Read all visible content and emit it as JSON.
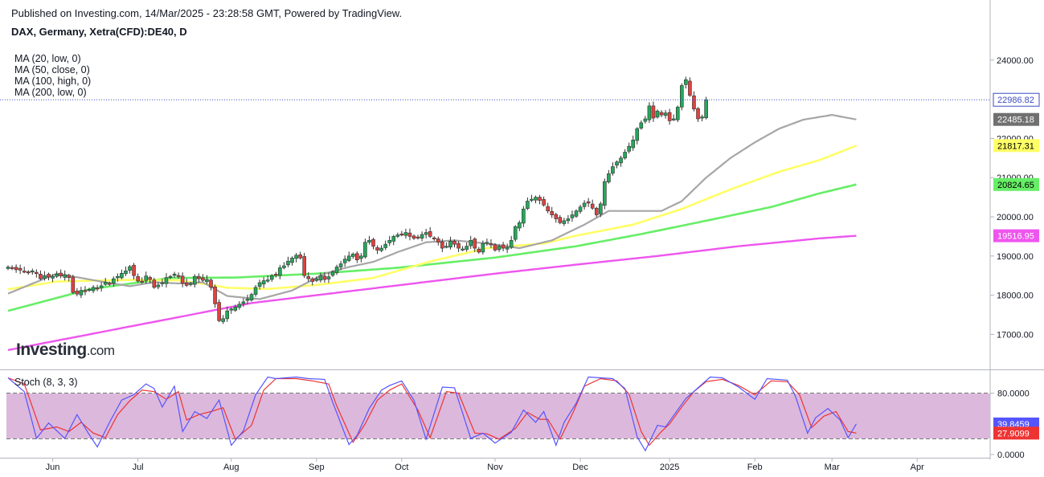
{
  "header": {
    "published": "Published on Investing.com, 14/Mar/2025 - 23:28:58 GMT, Powered by TradingView.",
    "symbol": "DAX, Germany, Xetra(CFD):DE40, D"
  },
  "legend": {
    "ma20": "MA (20, low, 0)",
    "ma50": "MA (50, close, 0)",
    "ma100": "MA (100, high, 0)",
    "ma200": "MA (200, low, 0)"
  },
  "stoch_title": "Stoch (8, 3, 3)",
  "logo": {
    "main": "Investing",
    "suffix": ".com"
  },
  "colors": {
    "up": "#26a65b",
    "down": "#e0423f",
    "ma20": "#a6a6a6",
    "ma50": "#ffff66",
    "ma100": "#66ee66",
    "ma200": "#ee55ee",
    "stoch_k": "#5555ff",
    "stoch_d": "#ee3333",
    "stoch_band": "#dcb8dc",
    "lastline": "#3d4ec1"
  },
  "chart_data": [
    {
      "type": "line",
      "title": "DAX, Germany, Xetra(CFD):DE40, D",
      "chart_style": "candlestick",
      "price_scale_ticks": [
        "17000.00",
        "18000.00",
        "19000.00",
        "20000.00",
        "21000.00",
        "22000.00",
        "24000.00"
      ],
      "time_ticks": [
        {
          "label": "Jun",
          "t": 11
        },
        {
          "label": "Jul",
          "t": 32
        },
        {
          "label": "Aug",
          "t": 55
        },
        {
          "label": "Sep",
          "t": 76
        },
        {
          "label": "Oct",
          "t": 97
        },
        {
          "label": "Nov",
          "t": 120
        },
        {
          "label": "Dec",
          "t": 141
        },
        {
          "label": "2025",
          "t": 163
        },
        {
          "label": "Feb",
          "t": 184
        },
        {
          "label": "Mar",
          "t": 203
        },
        {
          "label": "Apr",
          "t": 224
        }
      ],
      "ylim": [
        16400,
        24200
      ],
      "last_price": "22986.82",
      "price_labels": [
        {
          "text": "22986.82",
          "series": "last"
        },
        {
          "text": "22485.18",
          "series": "ma20"
        },
        {
          "text": "21817.31",
          "series": "ma50"
        },
        {
          "text": "20824.65",
          "series": "ma100"
        },
        {
          "text": "19516.95",
          "series": "ma200"
        }
      ],
      "close_series": [
        18720,
        18700,
        18650,
        18640,
        18600,
        18580,
        18620,
        18550,
        18420,
        18500,
        18460,
        18480,
        18540,
        18490,
        18520,
        18450,
        18070,
        18030,
        18120,
        18100,
        18150,
        18200,
        18180,
        18240,
        18330,
        18300,
        18420,
        18480,
        18560,
        18620,
        18730,
        18500,
        18360,
        18350,
        18490,
        18400,
        18200,
        18260,
        18320,
        18450,
        18480,
        18540,
        18500,
        18300,
        18250,
        18300,
        18480,
        18420,
        18380,
        18400,
        18200,
        17780,
        17350,
        17400,
        17600,
        17650,
        17700,
        17770,
        17830,
        17900,
        18020,
        18200,
        18320,
        18370,
        18390,
        18500,
        18530,
        18700,
        18750,
        18870,
        18950,
        19020,
        18950,
        18500,
        18420,
        18350,
        18420,
        18500,
        18400,
        18470,
        18600,
        18720,
        18800,
        18920,
        19000,
        19050,
        18900,
        19000,
        19350,
        19400,
        19250,
        19150,
        19200,
        19300,
        19400,
        19500,
        19540,
        19560,
        19600,
        19500,
        19450,
        19480,
        19550,
        19600,
        19500,
        19450,
        19350,
        19200,
        19250,
        19380,
        19300,
        19200,
        19180,
        19250,
        19400,
        19200,
        19100,
        19320,
        19350,
        19300,
        19150,
        19250,
        19200,
        19220,
        19400,
        19750,
        19850,
        20200,
        20400,
        20450,
        20500,
        20420,
        20300,
        20150,
        20050,
        19950,
        19850,
        19900,
        19950,
        20050,
        20150,
        20250,
        20350,
        20350,
        20220,
        20050,
        20330,
        20900,
        21100,
        21280,
        21400,
        21500,
        21650,
        21800,
        21960,
        22250,
        22400,
        22500,
        22830,
        22520,
        22700,
        22600,
        22650,
        22450,
        22500,
        22800,
        23350,
        23500,
        23100,
        22750,
        22500,
        22550,
        22986
      ],
      "ma_series": [
        {
          "name": "MA (20, low, 0)",
          "anchors": [
            [
              0,
              18040
            ],
            [
              12,
              18550
            ],
            [
              24,
              18330
            ],
            [
              30,
              18230
            ],
            [
              36,
              18330
            ],
            [
              42,
              18300
            ],
            [
              48,
              18330
            ],
            [
              54,
              17980
            ],
            [
              62,
              17900
            ],
            [
              70,
              18120
            ],
            [
              78,
              18550
            ],
            [
              84,
              18720
            ],
            [
              90,
              18850
            ],
            [
              96,
              19100
            ],
            [
              103,
              19350
            ],
            [
              110,
              19400
            ],
            [
              118,
              19320
            ],
            [
              126,
              19200
            ],
            [
              134,
              19400
            ],
            [
              142,
              19800
            ],
            [
              148,
              20150
            ],
            [
              154,
              20150
            ],
            [
              161,
              20150
            ],
            [
              166,
              20400
            ],
            [
              172,
              21000
            ],
            [
              178,
              21500
            ],
            [
              184,
              21900
            ],
            [
              190,
              22250
            ],
            [
              196,
              22480
            ],
            [
              203,
              22600
            ],
            [
              209,
              22485
            ]
          ]
        },
        {
          "name": "MA (50, close, 0)",
          "anchors": [
            [
              0,
              18150
            ],
            [
              12,
              18350
            ],
            [
              30,
              18390
            ],
            [
              42,
              18380
            ],
            [
              50,
              18260
            ],
            [
              54,
              18190
            ],
            [
              64,
              18160
            ],
            [
              76,
              18260
            ],
            [
              90,
              18440
            ],
            [
              104,
              18860
            ],
            [
              118,
              19200
            ],
            [
              132,
              19320
            ],
            [
              140,
              19520
            ],
            [
              154,
              19800
            ],
            [
              166,
              20200
            ],
            [
              178,
              20700
            ],
            [
              190,
              21150
            ],
            [
              200,
              21450
            ],
            [
              209,
              21817
            ]
          ]
        },
        {
          "name": "MA (100, high, 0)",
          "anchors": [
            [
              0,
              17600
            ],
            [
              20,
              18150
            ],
            [
              40,
              18440
            ],
            [
              56,
              18450
            ],
            [
              76,
              18550
            ],
            [
              96,
              18700
            ],
            [
              120,
              18960
            ],
            [
              140,
              19250
            ],
            [
              156,
              19560
            ],
            [
              172,
              19900
            ],
            [
              188,
              20250
            ],
            [
              200,
              20600
            ],
            [
              209,
              20825
            ]
          ]
        },
        {
          "name": "MA (200, low, 0)",
          "anchors": [
            [
              0,
              16600
            ],
            [
              20,
              17000
            ],
            [
              40,
              17400
            ],
            [
              60,
              17800
            ],
            [
              80,
              18050
            ],
            [
              100,
              18300
            ],
            [
              120,
              18550
            ],
            [
              140,
              18780
            ],
            [
              160,
              19000
            ],
            [
              180,
              19250
            ],
            [
              200,
              19450
            ],
            [
              209,
              19517
            ]
          ]
        }
      ]
    },
    {
      "type": "line",
      "title": "Stoch (8, 3, 3)",
      "ylim": [
        0,
        100
      ],
      "band": [
        20,
        80
      ],
      "axis_ticks": [
        "80.0000",
        "0.0000"
      ],
      "last_k": "39.8459",
      "last_d": "27.9099",
      "series": [
        {
          "name": "%K",
          "anchors": [
            [
              0,
              100
            ],
            [
              4,
              82
            ],
            [
              7,
              21
            ],
            [
              10,
              41
            ],
            [
              14,
              21
            ],
            [
              17,
              52
            ],
            [
              20,
              26
            ],
            [
              22,
              10
            ],
            [
              25,
              42
            ],
            [
              28,
              71
            ],
            [
              31,
              78
            ],
            [
              34,
              92
            ],
            [
              36,
              86
            ],
            [
              38,
              62
            ],
            [
              41,
              89
            ],
            [
              43,
              30
            ],
            [
              46,
              56
            ],
            [
              49,
              47
            ],
            [
              52,
              71
            ],
            [
              55,
              12
            ],
            [
              58,
              31
            ],
            [
              61,
              78
            ],
            [
              64,
              101
            ],
            [
              66,
              99
            ],
            [
              71,
              101
            ],
            [
              74,
              99
            ],
            [
              78,
              98
            ],
            [
              80,
              68
            ],
            [
              84,
              13
            ],
            [
              86,
              25
            ],
            [
              89,
              60
            ],
            [
              92,
              84
            ],
            [
              94,
              90
            ],
            [
              97,
              96
            ],
            [
              100,
              71
            ],
            [
              103,
              20
            ],
            [
              107,
              88
            ],
            [
              110,
              87
            ],
            [
              114,
              21
            ],
            [
              117,
              28
            ],
            [
              120,
              15
            ],
            [
              124,
              29
            ],
            [
              127,
              58
            ],
            [
              130,
              42
            ],
            [
              132,
              56
            ],
            [
              135,
              12
            ],
            [
              137,
              42
            ],
            [
              140,
              67
            ],
            [
              143,
              101
            ],
            [
              146,
              100
            ],
            [
              149,
              99
            ],
            [
              152,
              86
            ],
            [
              155,
              23
            ],
            [
              157,
              5
            ],
            [
              160,
              38
            ],
            [
              162,
              36
            ],
            [
              164,
              51
            ],
            [
              167,
              73
            ],
            [
              170,
              87
            ],
            [
              173,
              101
            ],
            [
              176,
              100
            ],
            [
              180,
              88
            ],
            [
              184,
              72
            ],
            [
              187,
              99
            ],
            [
              192,
              97
            ],
            [
              194,
              76
            ],
            [
              197,
              28
            ],
            [
              199,
              48
            ],
            [
              202,
              60
            ],
            [
              205,
              45
            ],
            [
              207,
              22
            ],
            [
              209,
              40
            ]
          ]
        },
        {
          "name": "%D",
          "anchors": [
            [
              0,
              100
            ],
            [
              4,
              92
            ],
            [
              8,
              32
            ],
            [
              12,
              36
            ],
            [
              15,
              30
            ],
            [
              18,
              42
            ],
            [
              21,
              28
            ],
            [
              24,
              22
            ],
            [
              27,
              52
            ],
            [
              30,
              70
            ],
            [
              33,
              84
            ],
            [
              36,
              82
            ],
            [
              39,
              72
            ],
            [
              42,
              82
            ],
            [
              44,
              45
            ],
            [
              47,
              52
            ],
            [
              50,
              56
            ],
            [
              53,
              61
            ],
            [
              56,
              20
            ],
            [
              60,
              38
            ],
            [
              63,
              84
            ],
            [
              66,
              99
            ],
            [
              71,
              99
            ],
            [
              75,
              96
            ],
            [
              79,
              92
            ],
            [
              81,
              63
            ],
            [
              85,
              16
            ],
            [
              88,
              40
            ],
            [
              91,
              71
            ],
            [
              94,
              84
            ],
            [
              97,
              92
            ],
            [
              101,
              58
            ],
            [
              104,
              22
            ],
            [
              108,
              82
            ],
            [
              111,
              80
            ],
            [
              115,
              28
            ],
            [
              118,
              27
            ],
            [
              121,
              20
            ],
            [
              125,
              34
            ],
            [
              128,
              55
            ],
            [
              131,
              46
            ],
            [
              133,
              46
            ],
            [
              136,
              20
            ],
            [
              139,
              52
            ],
            [
              142,
              89
            ],
            [
              146,
              99
            ],
            [
              150,
              96
            ],
            [
              153,
              79
            ],
            [
              156,
              30
            ],
            [
              158,
              12
            ],
            [
              161,
              30
            ],
            [
              163,
              40
            ],
            [
              166,
              62
            ],
            [
              169,
              82
            ],
            [
              172,
              95
            ],
            [
              176,
              98
            ],
            [
              180,
              90
            ],
            [
              184,
              78
            ],
            [
              188,
              96
            ],
            [
              192,
              95
            ],
            [
              195,
              78
            ],
            [
              198,
              35
            ],
            [
              201,
              50
            ],
            [
              204,
              56
            ],
            [
              207,
              30
            ],
            [
              209,
              28
            ]
          ]
        }
      ]
    }
  ]
}
